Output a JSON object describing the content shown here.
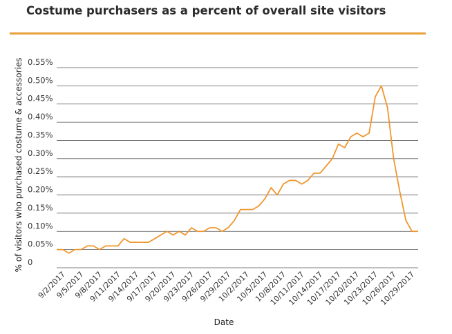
{
  "title": "Costume purchasers as a percent of overall site visitors",
  "colors": {
    "line": "#f0962e",
    "accent_rule": "#e8a13a",
    "grid": "#555555"
  },
  "chart_data": {
    "type": "line",
    "title": "Costume purchasers as a percent of overall site visitors",
    "xlabel": "Date",
    "ylabel": "% of visitors who purchased costume & accessories",
    "ylim": [
      0,
      0.55
    ],
    "yticks": [
      "0",
      "0.05%",
      "0.10%",
      "0.15%",
      "0.20%",
      "0.25%",
      "0.30%",
      "0.35%",
      "0.40%",
      "0.45%",
      "0.50%",
      "0.55%"
    ],
    "xtick_labels": [
      "9/2/2017",
      "9/5/2017",
      "9/8/2017",
      "9/11/2017",
      "9/14/2017",
      "9/17/2017",
      "9/20/2017",
      "9/23/2017",
      "9/26/2017",
      "9/29/2017",
      "10/2/2017",
      "10/5/2017",
      "10/8/2017",
      "10/11/2017",
      "10/14/2017",
      "10/17/2017",
      "10/20/2017",
      "10/23/2017",
      "10/26/2017",
      "10/29/2017"
    ],
    "grid": "horizontal",
    "series": [
      {
        "x": [
          "9/1/2017",
          "9/2/2017",
          "9/3/2017",
          "9/4/2017",
          "9/5/2017",
          "9/6/2017",
          "9/7/2017",
          "9/8/2017",
          "9/9/2017",
          "9/10/2017",
          "9/11/2017",
          "9/12/2017",
          "9/13/2017",
          "9/14/2017",
          "9/15/2017",
          "9/16/2017",
          "9/17/2017",
          "9/18/2017",
          "9/19/2017",
          "9/20/2017",
          "9/21/2017",
          "9/22/2017",
          "9/23/2017",
          "9/24/2017",
          "9/25/2017",
          "9/26/2017",
          "9/27/2017",
          "9/28/2017",
          "9/29/2017",
          "9/30/2017",
          "10/1/2017",
          "10/2/2017",
          "10/3/2017",
          "10/4/2017",
          "10/5/2017",
          "10/6/2017",
          "10/7/2017",
          "10/8/2017",
          "10/9/2017",
          "10/10/2017",
          "10/11/2017",
          "10/12/2017",
          "10/13/2017",
          "10/14/2017",
          "10/15/2017",
          "10/16/2017",
          "10/17/2017",
          "10/18/2017",
          "10/19/2017",
          "10/20/2017",
          "10/21/2017",
          "10/22/2017",
          "10/23/2017",
          "10/24/2017",
          "10/25/2017",
          "10/26/2017",
          "10/27/2017",
          "10/28/2017",
          "10/29/2017",
          "10/30/2017"
        ],
        "values": [
          0.05,
          0.05,
          0.04,
          0.05,
          0.05,
          0.06,
          0.06,
          0.05,
          0.06,
          0.06,
          0.06,
          0.08,
          0.07,
          0.07,
          0.07,
          0.07,
          0.08,
          0.09,
          0.1,
          0.09,
          0.1,
          0.09,
          0.11,
          0.1,
          0.1,
          0.11,
          0.11,
          0.1,
          0.11,
          0.13,
          0.16,
          0.16,
          0.16,
          0.17,
          0.19,
          0.22,
          0.2,
          0.23,
          0.24,
          0.24,
          0.23,
          0.24,
          0.26,
          0.26,
          0.28,
          0.3,
          0.34,
          0.33,
          0.36,
          0.37,
          0.36,
          0.37,
          0.47,
          0.5,
          0.44,
          0.3,
          0.21,
          0.13,
          0.1,
          0.1
        ]
      }
    ]
  }
}
